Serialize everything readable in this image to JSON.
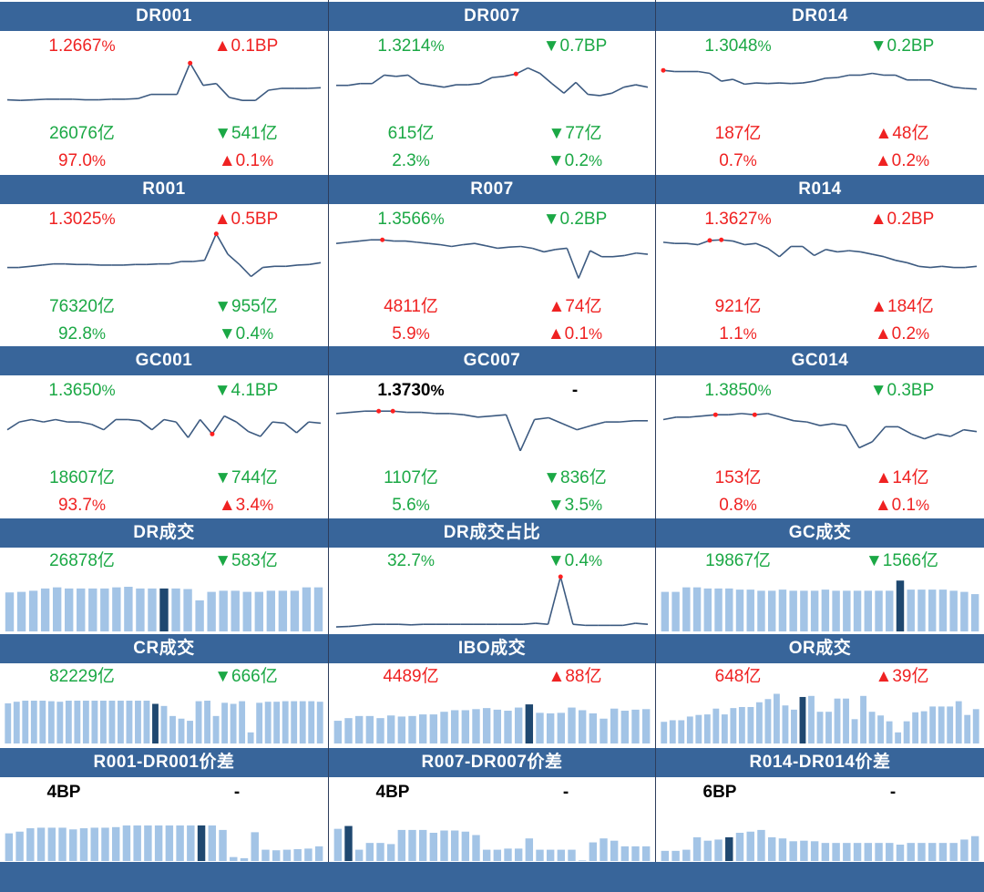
{
  "colors": {
    "header": "#38659a",
    "up": "#ef2222",
    "down": "#1ba845",
    "line": "#3c5a80",
    "bar": "#a3c4e6",
    "bar_highlight": "#1f4870"
  },
  "panels": [
    {
      "title": "DR001",
      "rate": "1.2667",
      "rate_unit": "%",
      "rate_dir": "up",
      "chg": "▲0.1BP",
      "chg_dir": "up",
      "vol": "26076亿",
      "vol_dir": "down",
      "vol_chg": "▼541亿",
      "vol_chg_dir": "down",
      "share": "97.0",
      "share_unit": "%",
      "share_dir": "up",
      "share_chg": "▲0.1",
      "share_chg_unit": "%",
      "share_chg_dir": "up"
    },
    {
      "title": "DR007",
      "rate": "1.3214",
      "rate_unit": "%",
      "rate_dir": "down",
      "chg": "▼0.7BP",
      "chg_dir": "down",
      "vol": "615亿",
      "vol_dir": "down",
      "vol_chg": "▼77亿",
      "vol_chg_dir": "down",
      "share": "2.3",
      "share_unit": "%",
      "share_dir": "down",
      "share_chg": "▼0.2",
      "share_chg_unit": "%",
      "share_chg_dir": "down"
    },
    {
      "title": "DR014",
      "rate": "1.3048",
      "rate_unit": "%",
      "rate_dir": "down",
      "chg": "▼0.2BP",
      "chg_dir": "down",
      "vol": "187亿",
      "vol_dir": "up",
      "vol_chg": "▲48亿",
      "vol_chg_dir": "up",
      "share": "0.7",
      "share_unit": "%",
      "share_dir": "up",
      "share_chg": "▲0.2",
      "share_chg_unit": "%",
      "share_chg_dir": "up"
    },
    {
      "title": "R001",
      "rate": "1.3025",
      "rate_unit": "%",
      "rate_dir": "up",
      "chg": "▲0.5BP",
      "chg_dir": "up",
      "vol": "76320亿",
      "vol_dir": "down",
      "vol_chg": "▼955亿",
      "vol_chg_dir": "down",
      "share": "92.8",
      "share_unit": "%",
      "share_dir": "down",
      "share_chg": "▼0.4",
      "share_chg_unit": "%",
      "share_chg_dir": "down"
    },
    {
      "title": "R007",
      "rate": "1.3566",
      "rate_unit": "%",
      "rate_dir": "down",
      "chg": "▼0.2BP",
      "chg_dir": "down",
      "vol": "4811亿",
      "vol_dir": "up",
      "vol_chg": "▲74亿",
      "vol_chg_dir": "up",
      "share": "5.9",
      "share_unit": "%",
      "share_dir": "up",
      "share_chg": "▲0.1",
      "share_chg_unit": "%",
      "share_chg_dir": "up"
    },
    {
      "title": "R014",
      "rate": "1.3627",
      "rate_unit": "%",
      "rate_dir": "up",
      "chg": "▲0.2BP",
      "chg_dir": "up",
      "vol": "921亿",
      "vol_dir": "up",
      "vol_chg": "▲184亿",
      "vol_chg_dir": "up",
      "share": "1.1",
      "share_unit": "%",
      "share_dir": "up",
      "share_chg": "▲0.2",
      "share_chg_unit": "%",
      "share_chg_dir": "up"
    },
    {
      "title": "GC001",
      "rate": "1.3650",
      "rate_unit": "%",
      "rate_dir": "down",
      "chg": "▼4.1BP",
      "chg_dir": "down",
      "vol": "18607亿",
      "vol_dir": "down",
      "vol_chg": "▼744亿",
      "vol_chg_dir": "down",
      "share": "93.7",
      "share_unit": "%",
      "share_dir": "up",
      "share_chg": "▲3.4",
      "share_chg_unit": "%",
      "share_chg_dir": "up"
    },
    {
      "title": "GC007",
      "rate": "1.3730",
      "rate_unit": "%",
      "rate_dir": "flat",
      "chg": "-",
      "chg_dir": "flat",
      "vol": "1107亿",
      "vol_dir": "down",
      "vol_chg": "▼836亿",
      "vol_chg_dir": "down",
      "share": "5.6",
      "share_unit": "%",
      "share_dir": "down",
      "share_chg": "▼3.5",
      "share_chg_unit": "%",
      "share_chg_dir": "down"
    },
    {
      "title": "GC014",
      "rate": "1.3850",
      "rate_unit": "%",
      "rate_dir": "down",
      "chg": "▼0.3BP",
      "chg_dir": "down",
      "vol": "153亿",
      "vol_dir": "up",
      "vol_chg": "▲14亿",
      "vol_chg_dir": "up",
      "share": "0.8",
      "share_unit": "%",
      "share_dir": "up",
      "share_chg": "▲0.1",
      "share_chg_unit": "%",
      "share_chg_dir": "up"
    }
  ],
  "volume_panels": [
    {
      "title": "DR成交",
      "value": "26878亿",
      "value_dir": "down",
      "chg": "▼583亿",
      "chg_dir": "down",
      "chart": "bar"
    },
    {
      "title": "DR成交占比",
      "value": "32.7",
      "value_unit": "%",
      "value_dir": "down",
      "chg": "▼0.4",
      "chg_unit": "%",
      "chg_dir": "down",
      "chart": "line"
    },
    {
      "title": "GC成交",
      "value": "19867亿",
      "value_dir": "down",
      "chg": "▼1566亿",
      "chg_dir": "down",
      "chart": "bar"
    },
    {
      "title": "CR成交",
      "value": "82229亿",
      "value_dir": "down",
      "chg": "▼666亿",
      "chg_dir": "down",
      "chart": "bar"
    },
    {
      "title": "IBO成交",
      "value": "4489亿",
      "value_dir": "up",
      "chg": "▲88亿",
      "chg_dir": "up",
      "chart": "bar"
    },
    {
      "title": "OR成交",
      "value": "648亿",
      "value_dir": "up",
      "chg": "▲39亿",
      "chg_dir": "up",
      "chart": "bar"
    }
  ],
  "spread_panels": [
    {
      "title": "R001-DR001价差",
      "value": "4BP",
      "chg": "-"
    },
    {
      "title": "R007-DR007价差",
      "value": "4BP",
      "chg": "-"
    },
    {
      "title": "R014-DR014价差",
      "value": "6BP",
      "chg": "-"
    }
  ],
  "chart_data": [
    {
      "type": "line",
      "series_of": "DR001",
      "values": [
        31,
        30,
        31,
        32,
        32,
        32,
        31,
        31,
        32,
        32,
        33,
        40,
        40,
        40,
        92,
        55,
        58,
        35,
        30,
        30,
        47,
        50,
        50,
        50,
        51
      ],
      "highlight": [
        14
      ]
    },
    {
      "type": "line",
      "series_of": "DR007",
      "values": [
        55,
        55,
        58,
        58,
        72,
        70,
        72,
        58,
        55,
        52,
        56,
        56,
        58,
        68,
        70,
        74,
        84,
        75,
        58,
        42,
        60,
        40,
        38,
        42,
        52,
        56,
        52
      ],
      "highlight": [
        15
      ]
    },
    {
      "type": "line",
      "series_of": "DR014",
      "values": [
        80,
        78,
        78,
        78,
        75,
        62,
        65,
        57,
        59,
        58,
        59,
        58,
        59,
        62,
        67,
        68,
        72,
        72,
        75,
        72,
        72,
        64,
        64,
        64,
        58,
        52,
        50,
        49
      ],
      "highlight": [
        0
      ]
    },
    {
      "type": "line",
      "series_of": "R001",
      "values": [
        40,
        40,
        42,
        44,
        46,
        46,
        45,
        45,
        44,
        44,
        44,
        45,
        45,
        46,
        46,
        50,
        50,
        52,
        96,
        62,
        45,
        25,
        40,
        42,
        42,
        44,
        45,
        48
      ],
      "highlight": [
        18
      ]
    },
    {
      "type": "line",
      "series_of": "R007",
      "values": [
        80,
        82,
        84,
        86,
        86,
        84,
        84,
        82,
        80,
        78,
        75,
        78,
        80,
        76,
        72,
        74,
        75,
        72,
        66,
        70,
        72,
        22,
        68,
        58,
        58,
        60,
        64,
        62
      ],
      "highlight": [
        4
      ]
    },
    {
      "type": "line",
      "series_of": "R014",
      "values": [
        82,
        80,
        80,
        78,
        85,
        86,
        84,
        78,
        80,
        72,
        58,
        75,
        75,
        60,
        70,
        66,
        68,
        66,
        62,
        58,
        52,
        48,
        42,
        40,
        42,
        40,
        40,
        42
      ],
      "highlight": [
        4,
        5
      ]
    },
    {
      "type": "line",
      "series_of": "GC001",
      "values": [
        55,
        68,
        72,
        68,
        72,
        68,
        68,
        64,
        55,
        72,
        72,
        70,
        55,
        72,
        68,
        42,
        72,
        48,
        78,
        68,
        52,
        44,
        68,
        66,
        50,
        68,
        66
      ],
      "highlight": [
        17
      ]
    },
    {
      "type": "line",
      "series_of": "GC007",
      "values": [
        82,
        84,
        86,
        86,
        86,
        84,
        84,
        82,
        82,
        80,
        76,
        78,
        80,
        20,
        72,
        75,
        65,
        55,
        62,
        68,
        68,
        70,
        70
      ],
      "highlight": [
        3,
        4
      ]
    },
    {
      "type": "line",
      "series_of": "GC014",
      "values": [
        72,
        76,
        76,
        78,
        80,
        80,
        82,
        80,
        82,
        76,
        70,
        68,
        62,
        65,
        62,
        25,
        35,
        60,
        60,
        48,
        40,
        48,
        44,
        55,
        52
      ],
      "highlight": [
        4,
        7
      ]
    },
    {
      "type": "bar",
      "series_of": "DR成交",
      "values": [
        69,
        70,
        72,
        76,
        78,
        76,
        76,
        76,
        76,
        78,
        79,
        76,
        76,
        76,
        76,
        75,
        55,
        70,
        72,
        72,
        70,
        70,
        72,
        72,
        72,
        78,
        78
      ],
      "highlight": [
        13
      ]
    },
    {
      "type": "line",
      "series_of": "DR成交占比",
      "values": [
        5,
        6,
        8,
        10,
        10,
        10,
        9,
        10,
        10,
        10,
        10,
        10,
        10,
        10,
        10,
        10,
        12,
        10,
        100,
        10,
        8,
        8,
        8,
        8,
        12,
        10
      ],
      "highlight": [
        18
      ]
    },
    {
      "type": "bar",
      "series_of": "GC成交",
      "values": [
        70,
        70,
        78,
        78,
        76,
        76,
        76,
        74,
        74,
        72,
        72,
        74,
        72,
        72,
        72,
        74,
        72,
        72,
        72,
        72,
        72,
        72,
        90,
        74,
        74,
        74,
        74,
        72,
        70,
        66
      ],
      "highlight": [
        22
      ]
    },
    {
      "type": "bar",
      "series_of": "CR成交",
      "values": [
        76,
        79,
        81,
        81,
        81,
        80,
        79,
        81,
        81,
        81,
        81,
        81,
        81,
        81,
        81,
        81,
        81,
        75,
        71,
        52,
        47,
        43,
        80,
        81,
        52,
        77,
        75,
        80,
        21,
        77,
        79,
        79,
        80,
        80,
        80,
        80,
        79
      ],
      "highlight": [
        17
      ]
    },
    {
      "type": "bar",
      "series_of": "IBO成交",
      "values": [
        43,
        48,
        52,
        52,
        48,
        53,
        51,
        52,
        55,
        55,
        60,
        63,
        63,
        65,
        67,
        64,
        62,
        68,
        74,
        58,
        57,
        58,
        68,
        63,
        57,
        47,
        66,
        62,
        64,
        65
      ],
      "highlight": [
        18
      ]
    },
    {
      "type": "bar",
      "series_of": "OR成交",
      "values": [
        41,
        44,
        44,
        51,
        54,
        55,
        66,
        55,
        67,
        69,
        69,
        78,
        84,
        94,
        72,
        64,
        88,
        90,
        60,
        60,
        85,
        85,
        46,
        90,
        60,
        53,
        42,
        21,
        42,
        59,
        61,
        70,
        70,
        70,
        80,
        54,
        65
      ],
      "highlight": [
        16
      ]
    },
    {
      "type": "bar",
      "series_of": "R001-DR001价差",
      "values": [
        49,
        52,
        58,
        59,
        59,
        59,
        56,
        58,
        59,
        59,
        60,
        63,
        63,
        63,
        63,
        63,
        63,
        63,
        63,
        63,
        55,
        7,
        5,
        51,
        20,
        19,
        20,
        21,
        22,
        26
      ],
      "highlight": [
        18
      ]
    },
    {
      "type": "bar",
      "series_of": "R007-DR007价差",
      "values": [
        57,
        62,
        20,
        32,
        32,
        30,
        55,
        55,
        55,
        50,
        54,
        54,
        52,
        46,
        20,
        20,
        22,
        22,
        40,
        20,
        20,
        20,
        20,
        1,
        33,
        40,
        36,
        26,
        26,
        26
      ],
      "highlight": [
        1
      ]
    },
    {
      "type": "bar",
      "series_of": "R014-DR014价差",
      "values": [
        18,
        18,
        20,
        42,
        36,
        38,
        42,
        50,
        52,
        55,
        42,
        40,
        35,
        36,
        35,
        32,
        32,
        32,
        32,
        32,
        32,
        32,
        29,
        32,
        32,
        32,
        32,
        32,
        38,
        44
      ],
      "highlight": [
        6
      ]
    }
  ]
}
